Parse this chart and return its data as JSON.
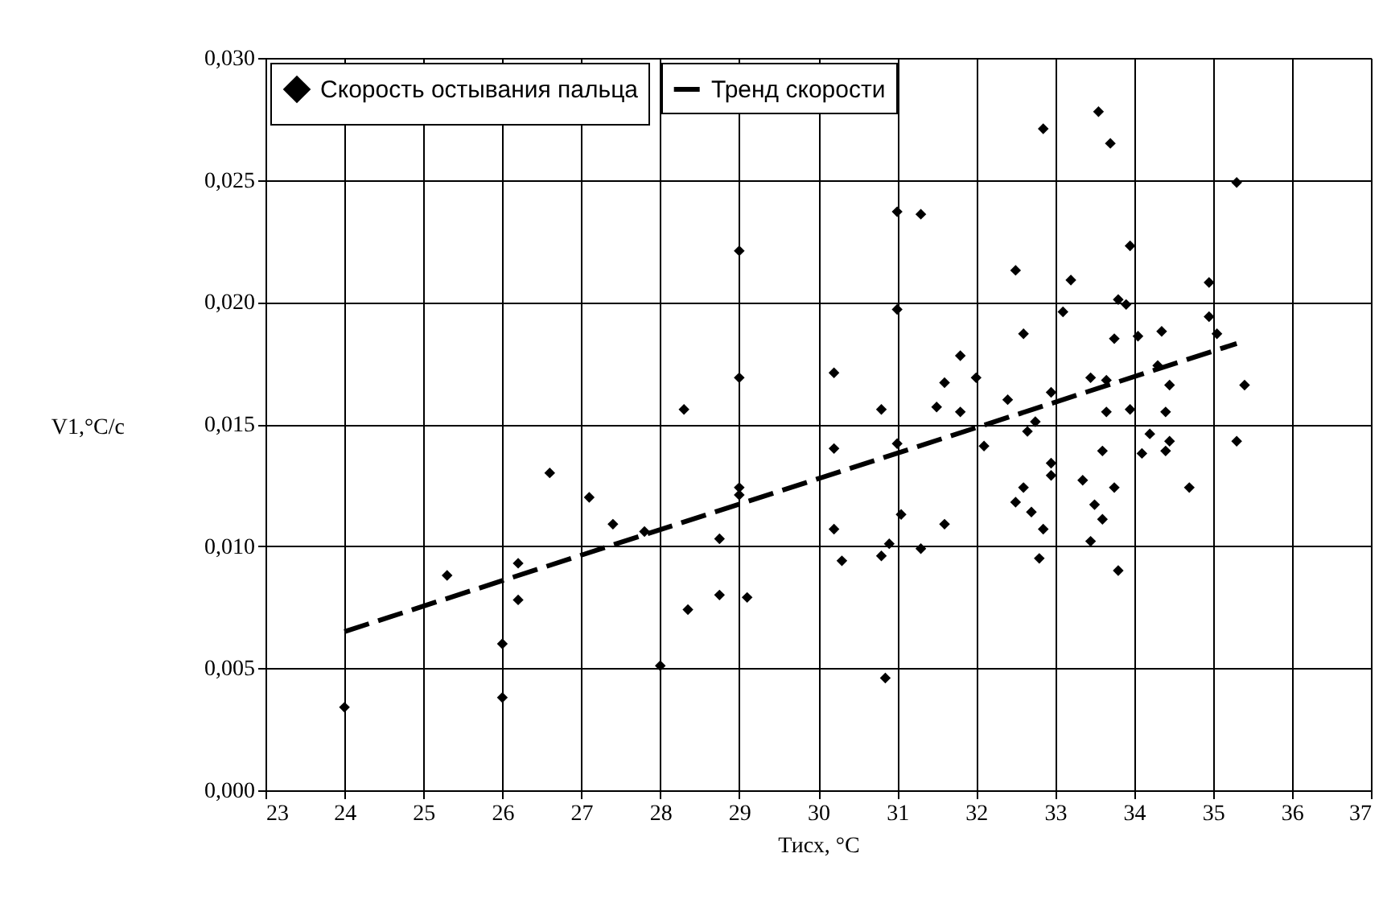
{
  "chart_data": {
    "type": "scatter",
    "xlabel": "Тисх, °C",
    "ylabel": "V1,°C/c",
    "xlim": [
      23,
      37
    ],
    "xticks": [
      23,
      24,
      25,
      26,
      27,
      28,
      29,
      30,
      31,
      32,
      33,
      34,
      35,
      36,
      37
    ],
    "ylim": [
      0,
      0.03
    ],
    "yticks": [
      {
        "value": 0,
        "label": "0,000"
      },
      {
        "value": 0.005,
        "label": "0,005"
      },
      {
        "value": 0.01,
        "label": "0,010"
      },
      {
        "value": 0.015,
        "label": "0,015"
      },
      {
        "value": 0.02,
        "label": "0,020"
      },
      {
        "value": 0.025,
        "label": "0,025"
      },
      {
        "value": 0.03,
        "label": "0,030"
      }
    ],
    "grid": true,
    "legend": "top left",
    "series": [
      {
        "name": "Скорость остывания пальца",
        "color": "#000000",
        "marker": "diamond",
        "x": [
          24.0,
          25.3,
          26.0,
          26.0,
          26.2,
          26.2,
          26.6,
          27.1,
          27.4,
          27.8,
          28.0,
          28.3,
          28.35,
          28.75,
          28.75,
          29.0,
          29.0,
          29.0,
          29.0,
          29.1,
          30.2,
          30.2,
          30.2,
          30.3,
          30.8,
          30.8,
          30.85,
          30.9,
          31.0,
          31.0,
          31.0,
          31.05,
          31.3,
          31.3,
          31.5,
          31.6,
          31.6,
          31.8,
          31.8,
          32.0,
          32.1,
          32.4,
          32.5,
          32.5,
          32.6,
          32.6,
          32.65,
          32.7,
          32.75,
          32.8,
          32.85,
          32.85,
          32.95,
          32.95,
          32.95,
          33.1,
          33.2,
          33.35,
          33.45,
          33.45,
          33.5,
          33.55,
          33.6,
          33.6,
          33.65,
          33.65,
          33.7,
          33.75,
          33.75,
          33.8,
          33.8,
          33.9,
          33.95,
          33.95,
          34.05,
          34.1,
          34.2,
          34.3,
          34.35,
          34.4,
          34.4,
          34.45,
          34.45,
          34.7,
          34.95,
          34.95,
          35.05,
          35.3,
          35.3,
          35.4
        ],
        "values": [
          0.0034,
          0.0088,
          0.006,
          0.0038,
          0.0093,
          0.0078,
          0.013,
          0.012,
          0.0109,
          0.0106,
          0.0051,
          0.0156,
          0.0074,
          0.008,
          0.0103,
          0.0221,
          0.0169,
          0.0124,
          0.0121,
          0.0079,
          0.0171,
          0.014,
          0.0107,
          0.0094,
          0.0156,
          0.0096,
          0.0046,
          0.0101,
          0.0237,
          0.0197,
          0.0142,
          0.0113,
          0.0236,
          0.0099,
          0.0157,
          0.0167,
          0.0109,
          0.0178,
          0.0155,
          0.0169,
          0.0141,
          0.016,
          0.0213,
          0.0118,
          0.0187,
          0.0124,
          0.0147,
          0.0114,
          0.0151,
          0.0095,
          0.0107,
          0.0271,
          0.0163,
          0.0134,
          0.0129,
          0.0196,
          0.0209,
          0.0127,
          0.0169,
          0.0102,
          0.0117,
          0.0278,
          0.0139,
          0.0111,
          0.0168,
          0.0155,
          0.0265,
          0.0124,
          0.0185,
          0.009,
          0.0201,
          0.0199,
          0.0223,
          0.0156,
          0.0186,
          0.0138,
          0.0146,
          0.0174,
          0.0188,
          0.0155,
          0.0139,
          0.0166,
          0.0143,
          0.0124,
          0.0208,
          0.0194,
          0.0187,
          0.0249,
          0.0143,
          0.0166
        ]
      },
      {
        "name": "Тренд скорости",
        "type": "line",
        "color": "#000000",
        "line_style": "dashed",
        "x": [
          24.0,
          35.3
        ],
        "values": [
          0.0065,
          0.0183
        ]
      }
    ]
  }
}
